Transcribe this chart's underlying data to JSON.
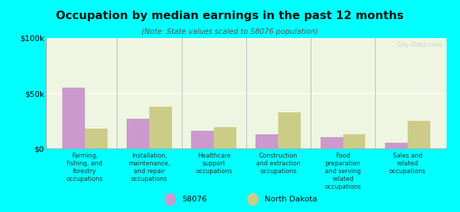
{
  "title": "Occupation by median earnings in the past 12 months",
  "subtitle": "(Note: State values scaled to 58076 population)",
  "categories": [
    "Farming,\nfishing, and\nforestry\noccupations",
    "Installation,\nmaintenance,\nand repair\noccupations",
    "Healthcare\nsupport\noccupations",
    "Construction\nand extraction\noccupations",
    "Food\npreparation\nand serving\nrelated\noccupations",
    "Sales and\nrelated\noccupations"
  ],
  "values_58076": [
    55000,
    27000,
    16000,
    13000,
    10000,
    5000
  ],
  "values_nd": [
    18000,
    38000,
    19000,
    33000,
    13000,
    25000
  ],
  "color_58076": "#cc99cc",
  "color_nd": "#cccc88",
  "ylim": [
    0,
    100000
  ],
  "ytick_labels": [
    "$0",
    "$50k",
    "$100k"
  ],
  "bg_color": "#00ffff",
  "plot_bg": "#eef5e0",
  "legend_label_58076": "58076",
  "legend_label_nd": "North Dakota",
  "watermark": "City-Data.com",
  "bar_width": 0.35
}
